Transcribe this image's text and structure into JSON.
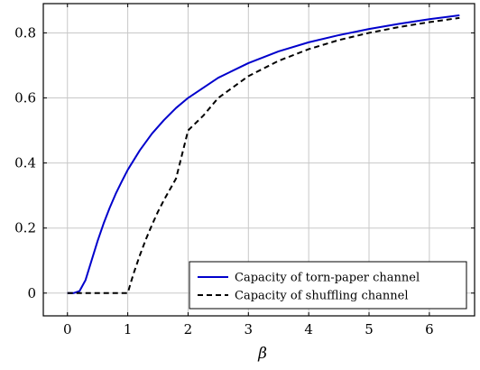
{
  "chart_data": {
    "type": "line",
    "title": "",
    "xlabel": "β",
    "ylabel": "",
    "xlim": [
      -0.4,
      6.75
    ],
    "ylim": [
      -0.07,
      0.89
    ],
    "grid": true,
    "legend_position": "bottom-right",
    "x_ticks": [
      0,
      1,
      2,
      3,
      4,
      5,
      6
    ],
    "y_ticks": [
      0,
      0.2,
      0.4,
      0.6,
      0.8
    ],
    "x_tick_labels": [
      "0",
      "1",
      "2",
      "3",
      "4",
      "5",
      "6"
    ],
    "y_tick_labels": [
      "0",
      "0.2",
      "0.4",
      "0.6",
      "0.8"
    ],
    "series": [
      {
        "name": "Capacity of torn-paper channel",
        "color": "#0000cc",
        "style": "solid",
        "x": [
          0,
          0.1,
          0.2,
          0.3,
          0.4,
          0.5,
          0.6,
          0.7,
          0.8,
          0.9,
          1.0,
          1.2,
          1.4,
          1.6,
          1.8,
          2.0,
          2.5,
          3.0,
          3.5,
          4.0,
          4.5,
          5.0,
          5.5,
          6.0,
          6.5
        ],
        "y": [
          0,
          0.0,
          0.006,
          0.04,
          0.1,
          0.16,
          0.214,
          0.262,
          0.305,
          0.343,
          0.379,
          0.439,
          0.49,
          0.532,
          0.569,
          0.6,
          0.662,
          0.707,
          0.743,
          0.771,
          0.793,
          0.812,
          0.828,
          0.842,
          0.854
        ]
      },
      {
        "name": "Capacity of shuffling channel",
        "color": "#000000",
        "style": "dashed",
        "x": [
          0,
          1.0,
          1.05,
          1.1,
          1.2,
          1.3,
          1.4,
          1.5,
          1.6,
          1.8,
          2.0,
          2.25,
          2.5,
          3.0,
          3.5,
          4.0,
          4.5,
          5.0,
          5.5,
          6.0,
          6.5
        ],
        "y": [
          0,
          0,
          0.032,
          0.062,
          0.116,
          0.165,
          0.209,
          0.25,
          0.286,
          0.352,
          0.5,
          0.545,
          0.6,
          0.667,
          0.714,
          0.75,
          0.778,
          0.8,
          0.818,
          0.833,
          0.846
        ]
      }
    ]
  }
}
